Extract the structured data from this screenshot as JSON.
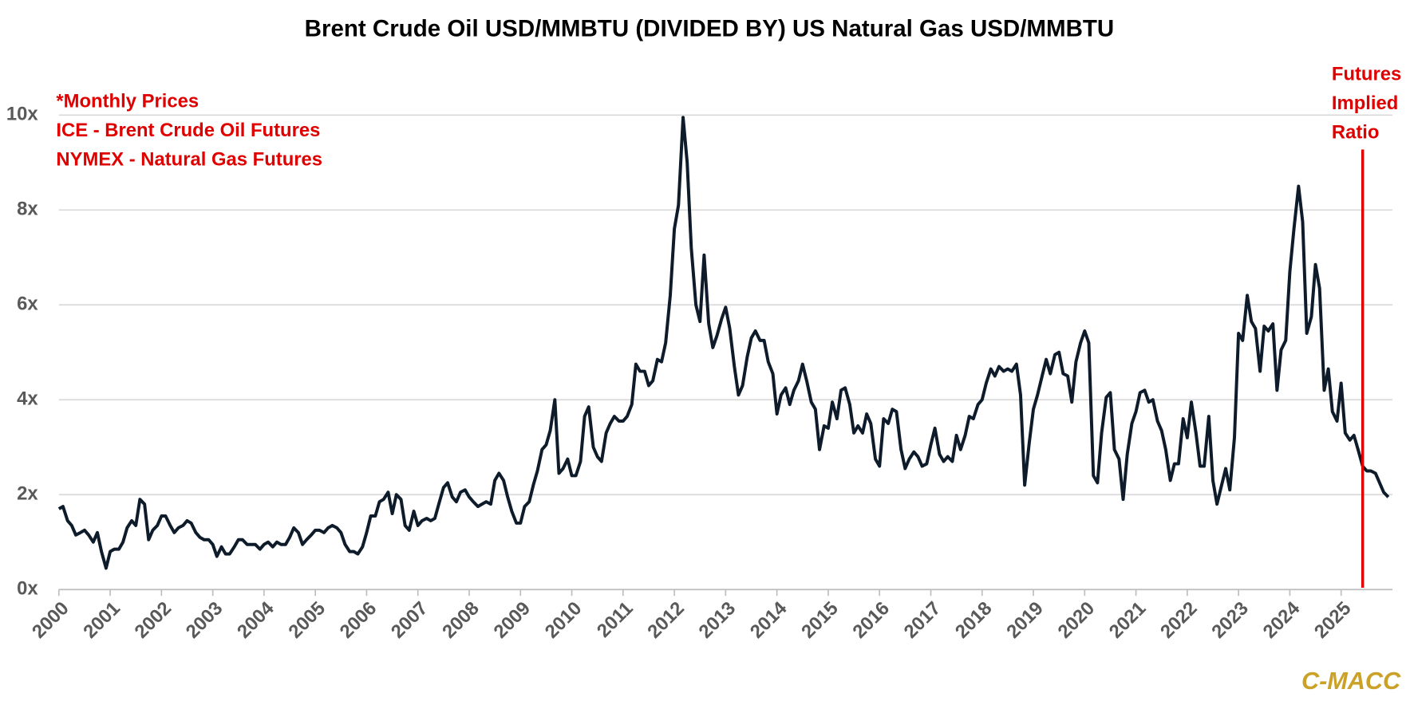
{
  "chart_data": {
    "type": "line",
    "title": "Brent Crude Oil USD/MMBTU (DIVIDED BY) US Natural Gas USD/MMBTU",
    "notes": [
      "*Monthly Prices",
      "ICE - Brent Crude Oil Futures",
      "NYMEX - Natural Gas Futures"
    ],
    "vline": {
      "x": 2025.42,
      "label": [
        "Futures",
        "Implied",
        "Ratio"
      ],
      "color": "#e00000"
    },
    "source": "C-MACC",
    "color": "#0d1b2a",
    "grid": true,
    "xlim": [
      2000,
      2026
    ],
    "xticks": [
      2000,
      2001,
      2002,
      2003,
      2004,
      2005,
      2006,
      2007,
      2008,
      2009,
      2010,
      2011,
      2012,
      2013,
      2014,
      2015,
      2016,
      2017,
      2018,
      2019,
      2020,
      2021,
      2022,
      2023,
      2024,
      2025
    ],
    "ylim": [
      0,
      10
    ],
    "yticks": [
      {
        "value": 0,
        "label": "0x"
      },
      {
        "value": 2,
        "label": "2x"
      },
      {
        "value": 4,
        "label": "4x"
      },
      {
        "value": 6,
        "label": "6x"
      },
      {
        "value": 8,
        "label": "8x"
      },
      {
        "value": 10,
        "label": "10x"
      }
    ],
    "x": [
      2000,
      2000.08,
      2000.17,
      2000.25,
      2000.33,
      2000.42,
      2000.5,
      2000.58,
      2000.67,
      2000.75,
      2000.83,
      2000.92,
      2001,
      2001.08,
      2001.17,
      2001.25,
      2001.33,
      2001.42,
      2001.5,
      2001.58,
      2001.67,
      2001.75,
      2001.83,
      2001.92,
      2002,
      2002.08,
      2002.17,
      2002.25,
      2002.33,
      2002.42,
      2002.5,
      2002.58,
      2002.67,
      2002.75,
      2002.83,
      2002.92,
      2003,
      2003.08,
      2003.17,
      2003.25,
      2003.33,
      2003.42,
      2003.5,
      2003.58,
      2003.67,
      2003.75,
      2003.83,
      2003.92,
      2004,
      2004.08,
      2004.17,
      2004.25,
      2004.33,
      2004.42,
      2004.5,
      2004.58,
      2004.67,
      2004.75,
      2004.83,
      2004.92,
      2005,
      2005.08,
      2005.17,
      2005.25,
      2005.33,
      2005.42,
      2005.5,
      2005.58,
      2005.67,
      2005.75,
      2005.83,
      2005.92,
      2006,
      2006.08,
      2006.17,
      2006.25,
      2006.33,
      2006.42,
      2006.5,
      2006.58,
      2006.67,
      2006.75,
      2006.83,
      2006.92,
      2007,
      2007.08,
      2007.17,
      2007.25,
      2007.33,
      2007.42,
      2007.5,
      2007.58,
      2007.67,
      2007.75,
      2007.83,
      2007.92,
      2008,
      2008.08,
      2008.17,
      2008.25,
      2008.33,
      2008.42,
      2008.5,
      2008.58,
      2008.67,
      2008.75,
      2008.83,
      2008.92,
      2009,
      2009.08,
      2009.17,
      2009.25,
      2009.33,
      2009.42,
      2009.5,
      2009.58,
      2009.67,
      2009.75,
      2009.83,
      2009.92,
      2010,
      2010.08,
      2010.17,
      2010.25,
      2010.33,
      2010.42,
      2010.5,
      2010.58,
      2010.67,
      2010.75,
      2010.83,
      2010.92,
      2011,
      2011.08,
      2011.17,
      2011.25,
      2011.33,
      2011.42,
      2011.5,
      2011.58,
      2011.67,
      2011.75,
      2011.83,
      2011.92,
      2012,
      2012.08,
      2012.17,
      2012.25,
      2012.33,
      2012.42,
      2012.5,
      2012.58,
      2012.67,
      2012.75,
      2012.83,
      2012.92,
      2013,
      2013.08,
      2013.17,
      2013.25,
      2013.33,
      2013.42,
      2013.5,
      2013.58,
      2013.67,
      2013.75,
      2013.83,
      2013.92,
      2014,
      2014.08,
      2014.17,
      2014.25,
      2014.33,
      2014.42,
      2014.5,
      2014.58,
      2014.67,
      2014.75,
      2014.83,
      2014.92,
      2015,
      2015.08,
      2015.17,
      2015.25,
      2015.33,
      2015.42,
      2015.5,
      2015.58,
      2015.67,
      2015.75,
      2015.83,
      2015.92,
      2016,
      2016.08,
      2016.17,
      2016.25,
      2016.33,
      2016.42,
      2016.5,
      2016.58,
      2016.67,
      2016.75,
      2016.83,
      2016.92,
      2017,
      2017.08,
      2017.17,
      2017.25,
      2017.33,
      2017.42,
      2017.5,
      2017.58,
      2017.67,
      2017.75,
      2017.83,
      2017.92,
      2018,
      2018.08,
      2018.17,
      2018.25,
      2018.33,
      2018.42,
      2018.5,
      2018.58,
      2018.67,
      2018.75,
      2018.83,
      2018.92,
      2019,
      2019.08,
      2019.17,
      2019.25,
      2019.33,
      2019.42,
      2019.5,
      2019.58,
      2019.67,
      2019.75,
      2019.83,
      2019.92,
      2020,
      2020.08,
      2020.17,
      2020.25,
      2020.33,
      2020.42,
      2020.5,
      2020.58,
      2020.67,
      2020.75,
      2020.83,
      2020.92,
      2021,
      2021.08,
      2021.17,
      2021.25,
      2021.33,
      2021.42,
      2021.5,
      2021.58,
      2021.67,
      2021.75,
      2021.83,
      2021.92,
      2022,
      2022.08,
      2022.17,
      2022.25,
      2022.33,
      2022.42,
      2022.5,
      2022.58,
      2022.67,
      2022.75,
      2022.83,
      2022.92,
      2023,
      2023.08,
      2023.17,
      2023.25,
      2023.33,
      2023.42,
      2023.5,
      2023.58,
      2023.67,
      2023.75,
      2023.83,
      2023.92,
      2024,
      2024.08,
      2024.17,
      2024.25,
      2024.33,
      2024.42,
      2024.5,
      2024.58,
      2024.67,
      2024.75,
      2024.83,
      2024.92,
      2025,
      2025.08,
      2025.17,
      2025.25,
      2025.33,
      2025.42,
      2025.5,
      2025.58,
      2025.67,
      2025.75,
      2025.83,
      2025.92
    ],
    "values": [
      1.7,
      1.75,
      1.45,
      1.35,
      1.15,
      1.2,
      1.25,
      1.15,
      1.0,
      1.2,
      0.8,
      0.45,
      0.8,
      0.85,
      0.85,
      1.0,
      1.3,
      1.45,
      1.35,
      1.9,
      1.8,
      1.05,
      1.25,
      1.35,
      1.55,
      1.55,
      1.35,
      1.2,
      1.3,
      1.35,
      1.45,
      1.4,
      1.2,
      1.1,
      1.05,
      1.05,
      0.95,
      0.7,
      0.9,
      0.75,
      0.75,
      0.9,
      1.05,
      1.05,
      0.95,
      0.95,
      0.95,
      0.85,
      0.95,
      1.0,
      0.9,
      1.0,
      0.95,
      0.95,
      1.1,
      1.3,
      1.2,
      0.95,
      1.05,
      1.15,
      1.25,
      1.25,
      1.2,
      1.3,
      1.35,
      1.3,
      1.2,
      0.95,
      0.8,
      0.8,
      0.75,
      0.9,
      1.2,
      1.55,
      1.55,
      1.85,
      1.9,
      2.05,
      1.6,
      2.0,
      1.9,
      1.35,
      1.25,
      1.65,
      1.35,
      1.45,
      1.5,
      1.45,
      1.5,
      1.85,
      2.15,
      2.25,
      1.95,
      1.85,
      2.05,
      2.1,
      1.95,
      1.85,
      1.75,
      1.8,
      1.85,
      1.8,
      2.3,
      2.45,
      2.3,
      1.95,
      1.65,
      1.4,
      1.4,
      1.75,
      1.85,
      2.2,
      2.5,
      2.95,
      3.05,
      3.35,
      4.0,
      2.45,
      2.55,
      2.75,
      2.4,
      2.4,
      2.7,
      3.65,
      3.85,
      3.0,
      2.8,
      2.7,
      3.3,
      3.5,
      3.65,
      3.55,
      3.55,
      3.65,
      3.9,
      4.75,
      4.6,
      4.6,
      4.3,
      4.4,
      4.85,
      4.8,
      5.2,
      6.2,
      7.6,
      8.1,
      9.95,
      9.0,
      7.2,
      6.0,
      5.65,
      7.05,
      5.6,
      5.1,
      5.35,
      5.7,
      5.95,
      5.5,
      4.7,
      4.1,
      4.3,
      4.9,
      5.3,
      5.45,
      5.25,
      5.25,
      4.8,
      4.55,
      3.7,
      4.1,
      4.25,
      3.9,
      4.2,
      4.4,
      4.75,
      4.4,
      3.95,
      3.8,
      2.95,
      3.45,
      3.4,
      3.95,
      3.6,
      4.2,
      4.25,
      3.9,
      3.3,
      3.45,
      3.3,
      3.7,
      3.5,
      2.75,
      2.6,
      3.6,
      3.5,
      3.8,
      3.75,
      2.95,
      2.55,
      2.75,
      2.9,
      2.8,
      2.6,
      2.65,
      3.05,
      3.4,
      2.85,
      2.7,
      2.8,
      2.7,
      3.25,
      2.95,
      3.25,
      3.65,
      3.6,
      3.9,
      4.0,
      4.35,
      4.65,
      4.5,
      4.7,
      4.6,
      4.65,
      4.6,
      4.75,
      4.1,
      2.2,
      3.1,
      3.8,
      4.1,
      4.5,
      4.85,
      4.55,
      4.95,
      5.0,
      4.55,
      4.5,
      3.95,
      4.8,
      5.2,
      5.45,
      5.2,
      2.4,
      2.25,
      3.3,
      4.05,
      4.15,
      2.95,
      2.75,
      1.9,
      2.85,
      3.5,
      3.75,
      4.15,
      4.2,
      3.95,
      4.0,
      3.55,
      3.35,
      2.95,
      2.3,
      2.65,
      2.65,
      3.6,
      3.2,
      3.95,
      3.3,
      2.6,
      2.6,
      3.65,
      2.3,
      1.8,
      2.2,
      2.55,
      2.1,
      3.2,
      5.4,
      5.25,
      6.2,
      5.65,
      5.5,
      4.6,
      5.55,
      5.45,
      5.6,
      4.2,
      5.05,
      5.25,
      6.7,
      7.6,
      8.5,
      7.75,
      5.4,
      5.75,
      6.85,
      6.35,
      4.2,
      4.65,
      3.75,
      3.55,
      4.35,
      3.3,
      3.15,
      3.25,
      2.95,
      2.6,
      2.5,
      2.5,
      2.45,
      2.25,
      2.05,
      1.95
    ]
  }
}
